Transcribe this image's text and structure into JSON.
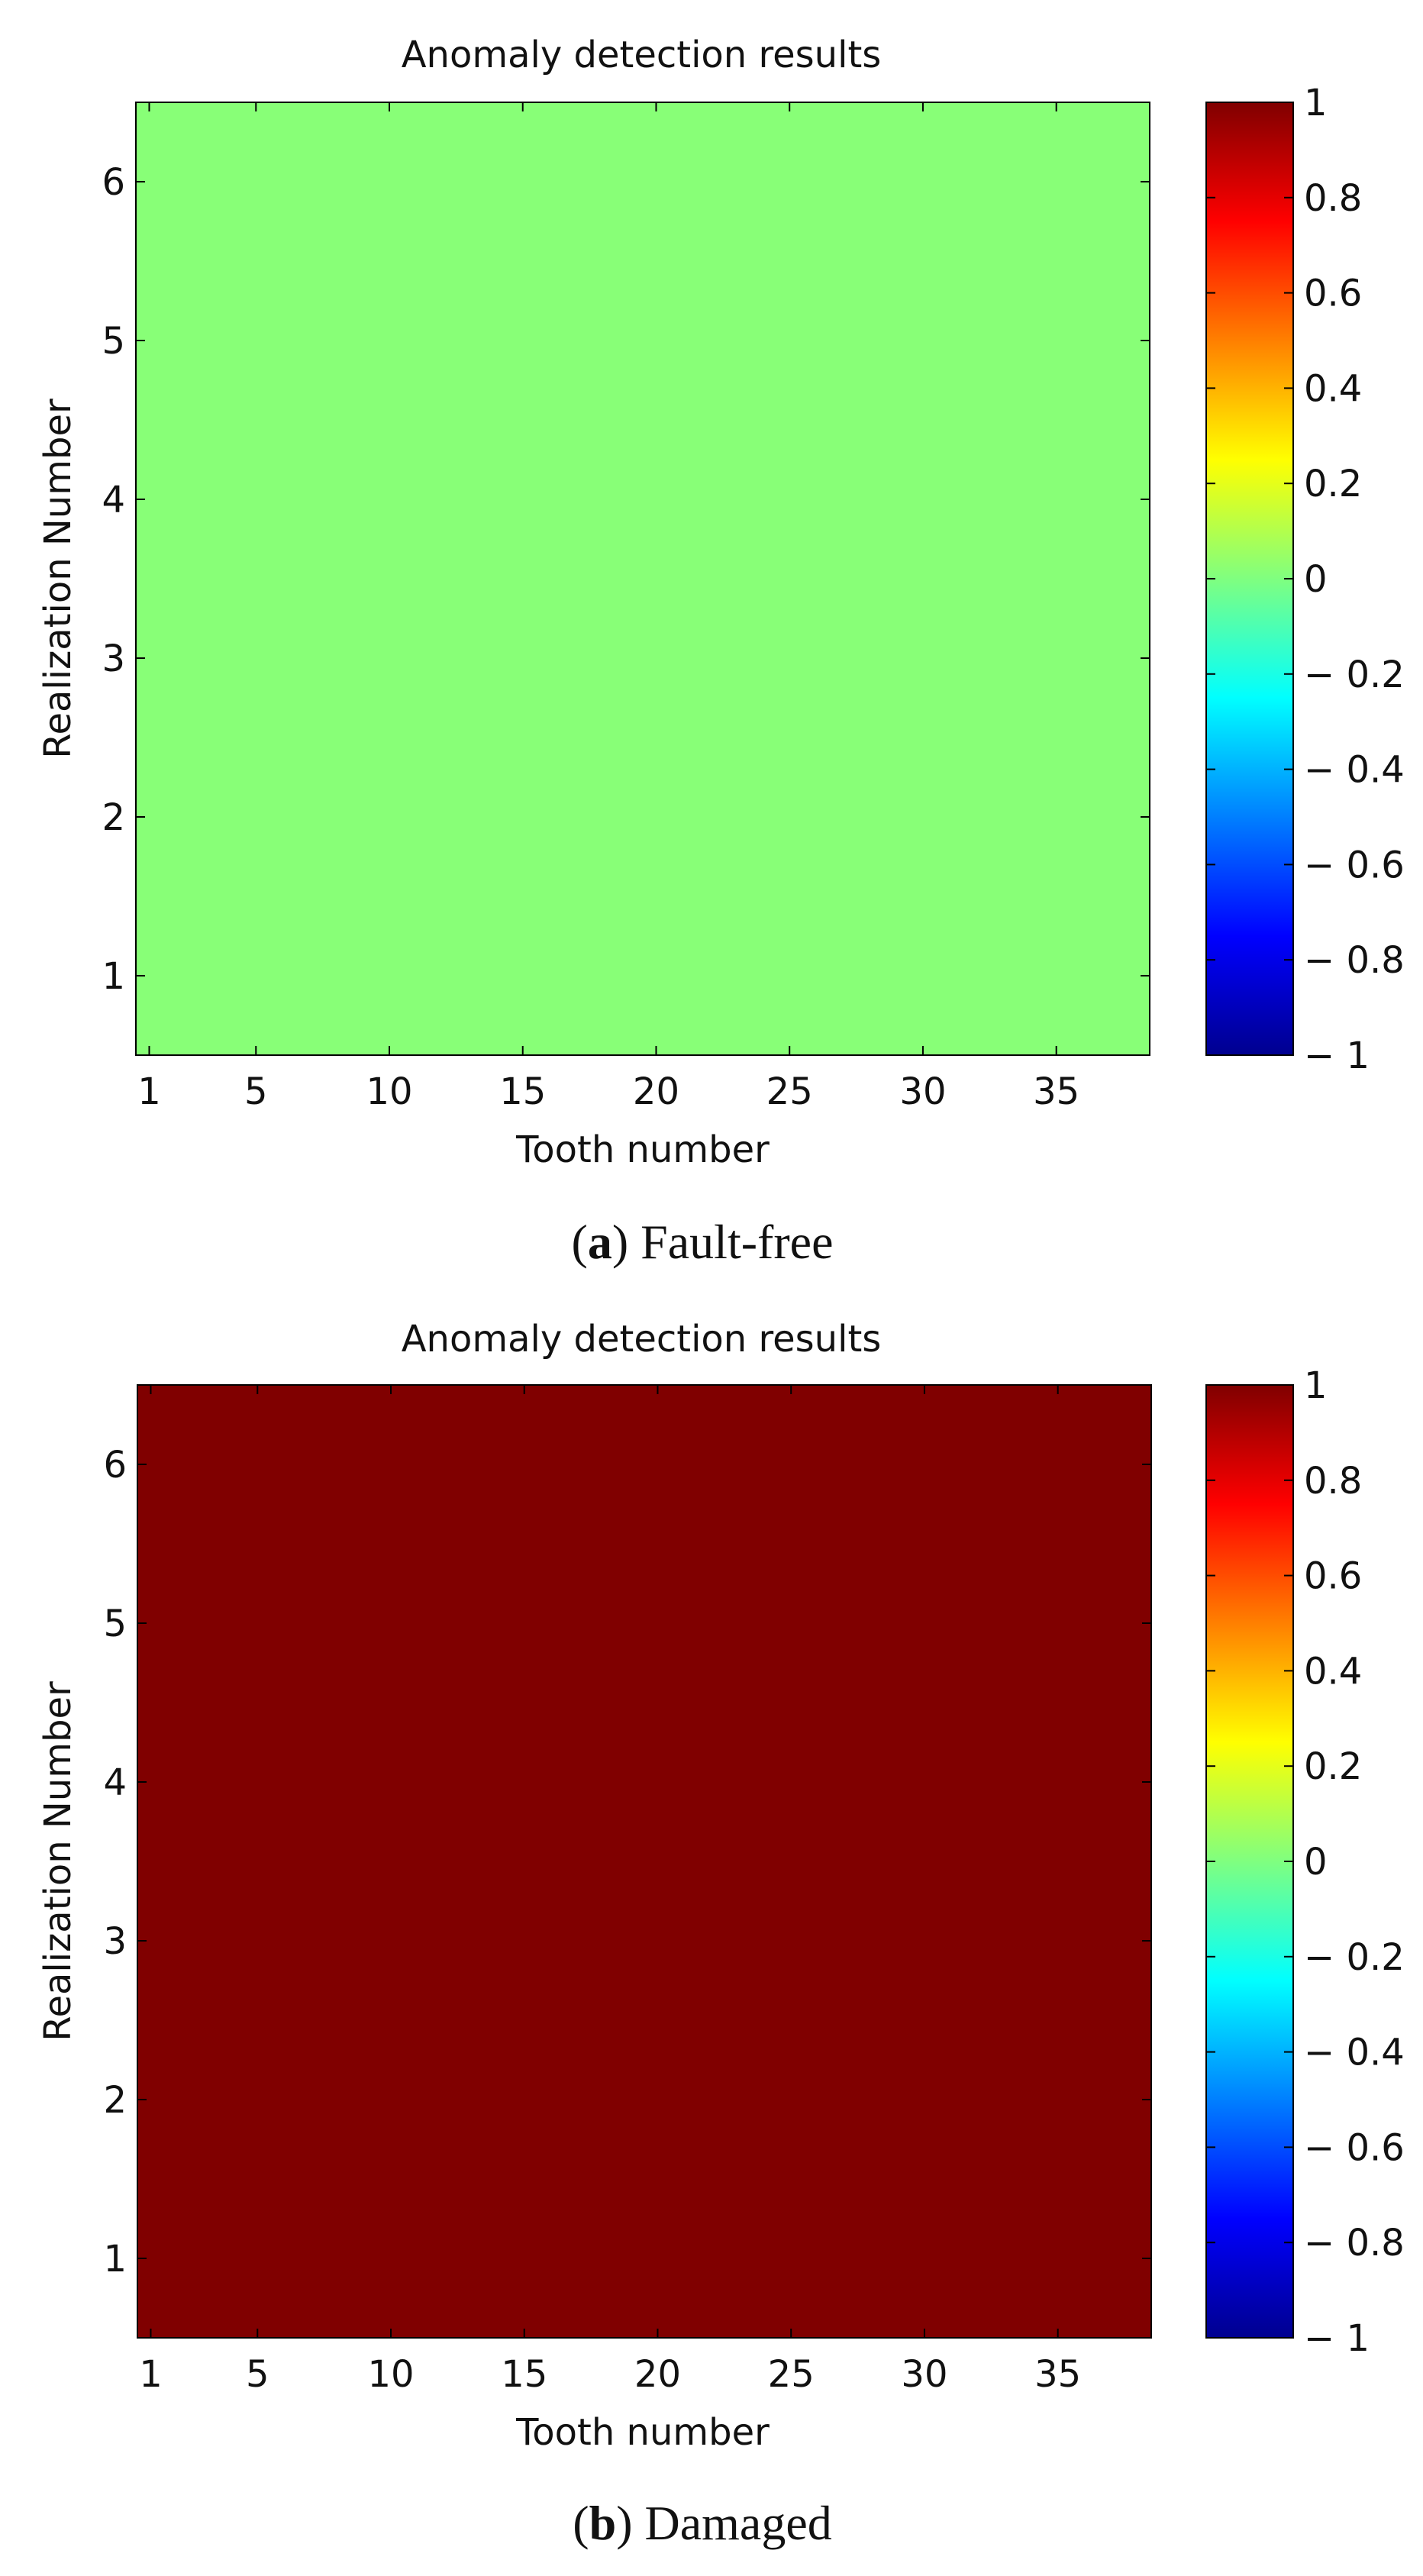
{
  "chart_data": [
    {
      "type": "heatmap",
      "title": "Anomaly detection results",
      "xlabel": "Tooth number",
      "ylabel": "Realization Number",
      "x_range": [
        1,
        38
      ],
      "y_range": [
        1,
        6
      ],
      "xticks": [
        1,
        5,
        10,
        15,
        20,
        25,
        30,
        35
      ],
      "yticks": [
        1,
        2,
        3,
        4,
        5,
        6
      ],
      "uniform_value": 0.2,
      "cell_color": "#88ff77",
      "colorbar": {
        "colormap": "jet",
        "range": [
          -1,
          1
        ],
        "tick_values": [
          1,
          0.8,
          0.6,
          0.4,
          0.2,
          0,
          -0.2,
          -0.4,
          -0.6,
          -0.8,
          -1
        ],
        "tick_labels": [
          "1",
          "0.8",
          "0.6",
          "0.4",
          "0.2",
          "0",
          "− 0.2",
          "− 0.4",
          "− 0.6",
          "− 0.8",
          "− 1"
        ]
      },
      "caption_letter": "a",
      "caption_text": "Fault-free"
    },
    {
      "type": "heatmap",
      "title": "Anomaly detection results",
      "xlabel": "Tooth number",
      "ylabel": "Realization Number",
      "x_range": [
        1,
        38
      ],
      "y_range": [
        1,
        6
      ],
      "xticks": [
        1,
        5,
        10,
        15,
        20,
        25,
        30,
        35
      ],
      "yticks": [
        1,
        2,
        3,
        4,
        5,
        6
      ],
      "uniform_value": 1,
      "cell_color": "#800000",
      "colorbar": {
        "colormap": "jet",
        "range": [
          -1,
          1
        ],
        "tick_values": [
          1,
          0.8,
          0.6,
          0.4,
          0.2,
          0,
          -0.2,
          -0.4,
          -0.6,
          -0.8,
          -1
        ],
        "tick_labels": [
          "1",
          "0.8",
          "0.6",
          "0.4",
          "0.2",
          "0",
          "− 0.2",
          "− 0.4",
          "− 0.6",
          "− 0.8",
          "− 1"
        ]
      },
      "caption_letter": "b",
      "caption_text": "Damaged"
    }
  ]
}
